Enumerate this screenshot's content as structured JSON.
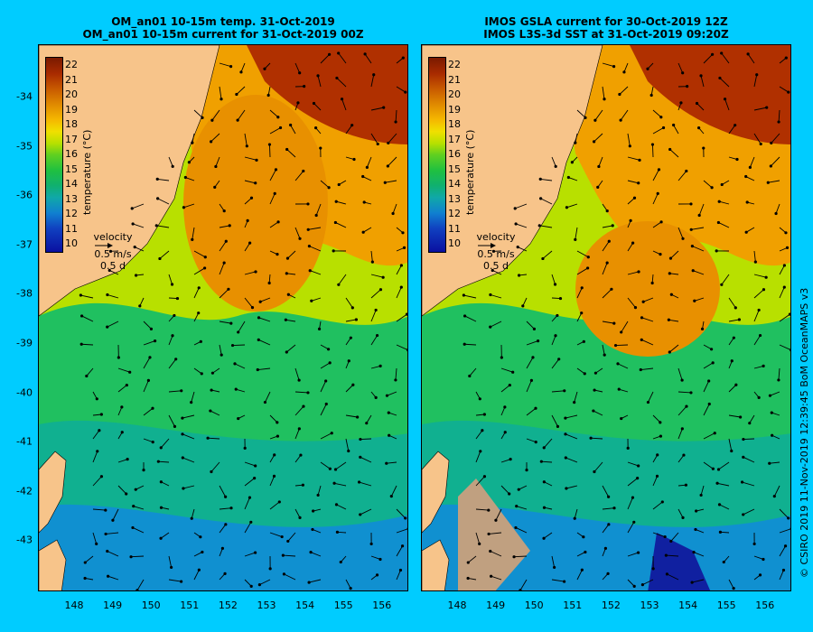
{
  "left_title": {
    "line1": "OM_an01 10-15m temp. 31-Oct-2019",
    "line2": "OM_an01 10-15m current for 31-Oct-2019 00Z"
  },
  "right_title": {
    "line1": "IMOS GSLA current for 30-Oct-2019 12Z",
    "line2": "IMOS L3S-3d SST at 31-Oct-2019 09:20Z"
  },
  "colorbar": {
    "ticks": [
      "22",
      "21",
      "20",
      "19",
      "18",
      "17",
      "16",
      "15",
      "14",
      "13",
      "12",
      "11",
      "10"
    ],
    "unit_label": "temperature (°C)",
    "colors": [
      "#7a1a00",
      "#a82a00",
      "#c85a00",
      "#e08a00",
      "#f5b800",
      "#f0e000",
      "#60d020",
      "#20c040",
      "#10b070",
      "#10a8a8",
      "#1080d0",
      "#1040c0",
      "#0a10a0"
    ]
  },
  "velocity_key": {
    "label": "velocity",
    "speed": "0.5 m/s",
    "duration": "0.5 d"
  },
  "x_ticks": [
    "148",
    "149",
    "150",
    "151",
    "152",
    "153",
    "154",
    "155",
    "156"
  ],
  "y_ticks": [
    "-34",
    "-35",
    "-36",
    "-37",
    "-38",
    "-39",
    "-40",
    "-41",
    "-42",
    "-43"
  ],
  "credit": "© CSIRO 2019   11-Nov-2019 12:39:45 BoM OceanMAPS v3",
  "colors": {
    "background": "#00ccff",
    "land": "#f7c48a",
    "no_data": "#c0a080"
  }
}
